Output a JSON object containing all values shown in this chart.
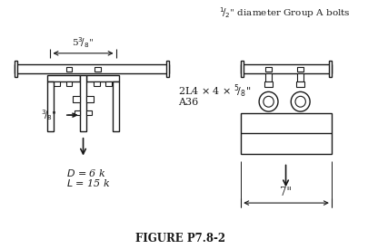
{
  "fig_width": 4.16,
  "fig_height": 2.75,
  "dpi": 100,
  "bg_color": "#ffffff",
  "line_color": "#1a1a1a",
  "title": "FIGURE P7.8-2",
  "label_bolt": "1/2\" diameter Group A bolts",
  "lw": 1.0
}
